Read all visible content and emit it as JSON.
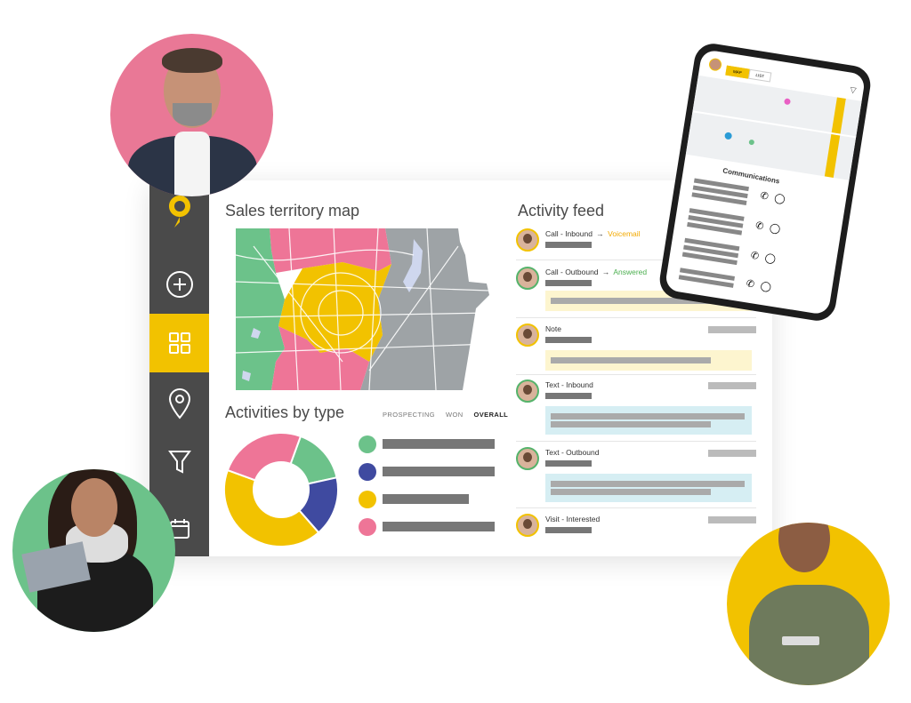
{
  "app": {
    "map_title": "Sales territory map",
    "activities_title": "Activities by type",
    "feed_title": "Activity feed",
    "filters": [
      "PROSPECTING",
      "WON",
      "OVERALL"
    ],
    "active_filter": "OVERALL"
  },
  "rail": {
    "items": [
      "logo-icon",
      "add-icon",
      "dashboard-icon",
      "map-pin-icon",
      "filter-icon",
      "calendar-icon"
    ],
    "active": "dashboard-icon"
  },
  "colors": {
    "accent": "#f2c200",
    "green": "#6cc28a",
    "navy": "#3f4aa0",
    "pink": "#ee7597",
    "gray": "#9ea3a6",
    "rail": "#4a4a4a",
    "voicemail": "#f2a900",
    "answered": "#4caf50"
  },
  "donut": {
    "segments": [
      {
        "color": "#6cc28a",
        "value": 0.16
      },
      {
        "color": "#3f4aa0",
        "value": 0.17
      },
      {
        "color": "#f2c200",
        "value": 0.42
      },
      {
        "color": "#ee7597",
        "value": 0.25
      }
    ]
  },
  "feed": {
    "items": [
      {
        "title": "Call - Inbound",
        "arrow": "→",
        "status": "Voicemail",
        "status_color": "orange"
      },
      {
        "title": "Call - Outbound",
        "arrow": "→",
        "status": "Answered",
        "status_color": "green"
      },
      {
        "title": "Note",
        "arrow": "",
        "status": "",
        "status_color": ""
      },
      {
        "title": "Text - Inbound",
        "arrow": "",
        "status": "",
        "status_color": ""
      },
      {
        "title": "Text - Outbound",
        "arrow": "",
        "status": "",
        "status_color": ""
      },
      {
        "title": "Visit - Interested",
        "arrow": "",
        "status": "",
        "status_color": ""
      }
    ]
  },
  "phone": {
    "tabs": [
      "MAP",
      "LIST"
    ],
    "section_title": "Communications"
  }
}
